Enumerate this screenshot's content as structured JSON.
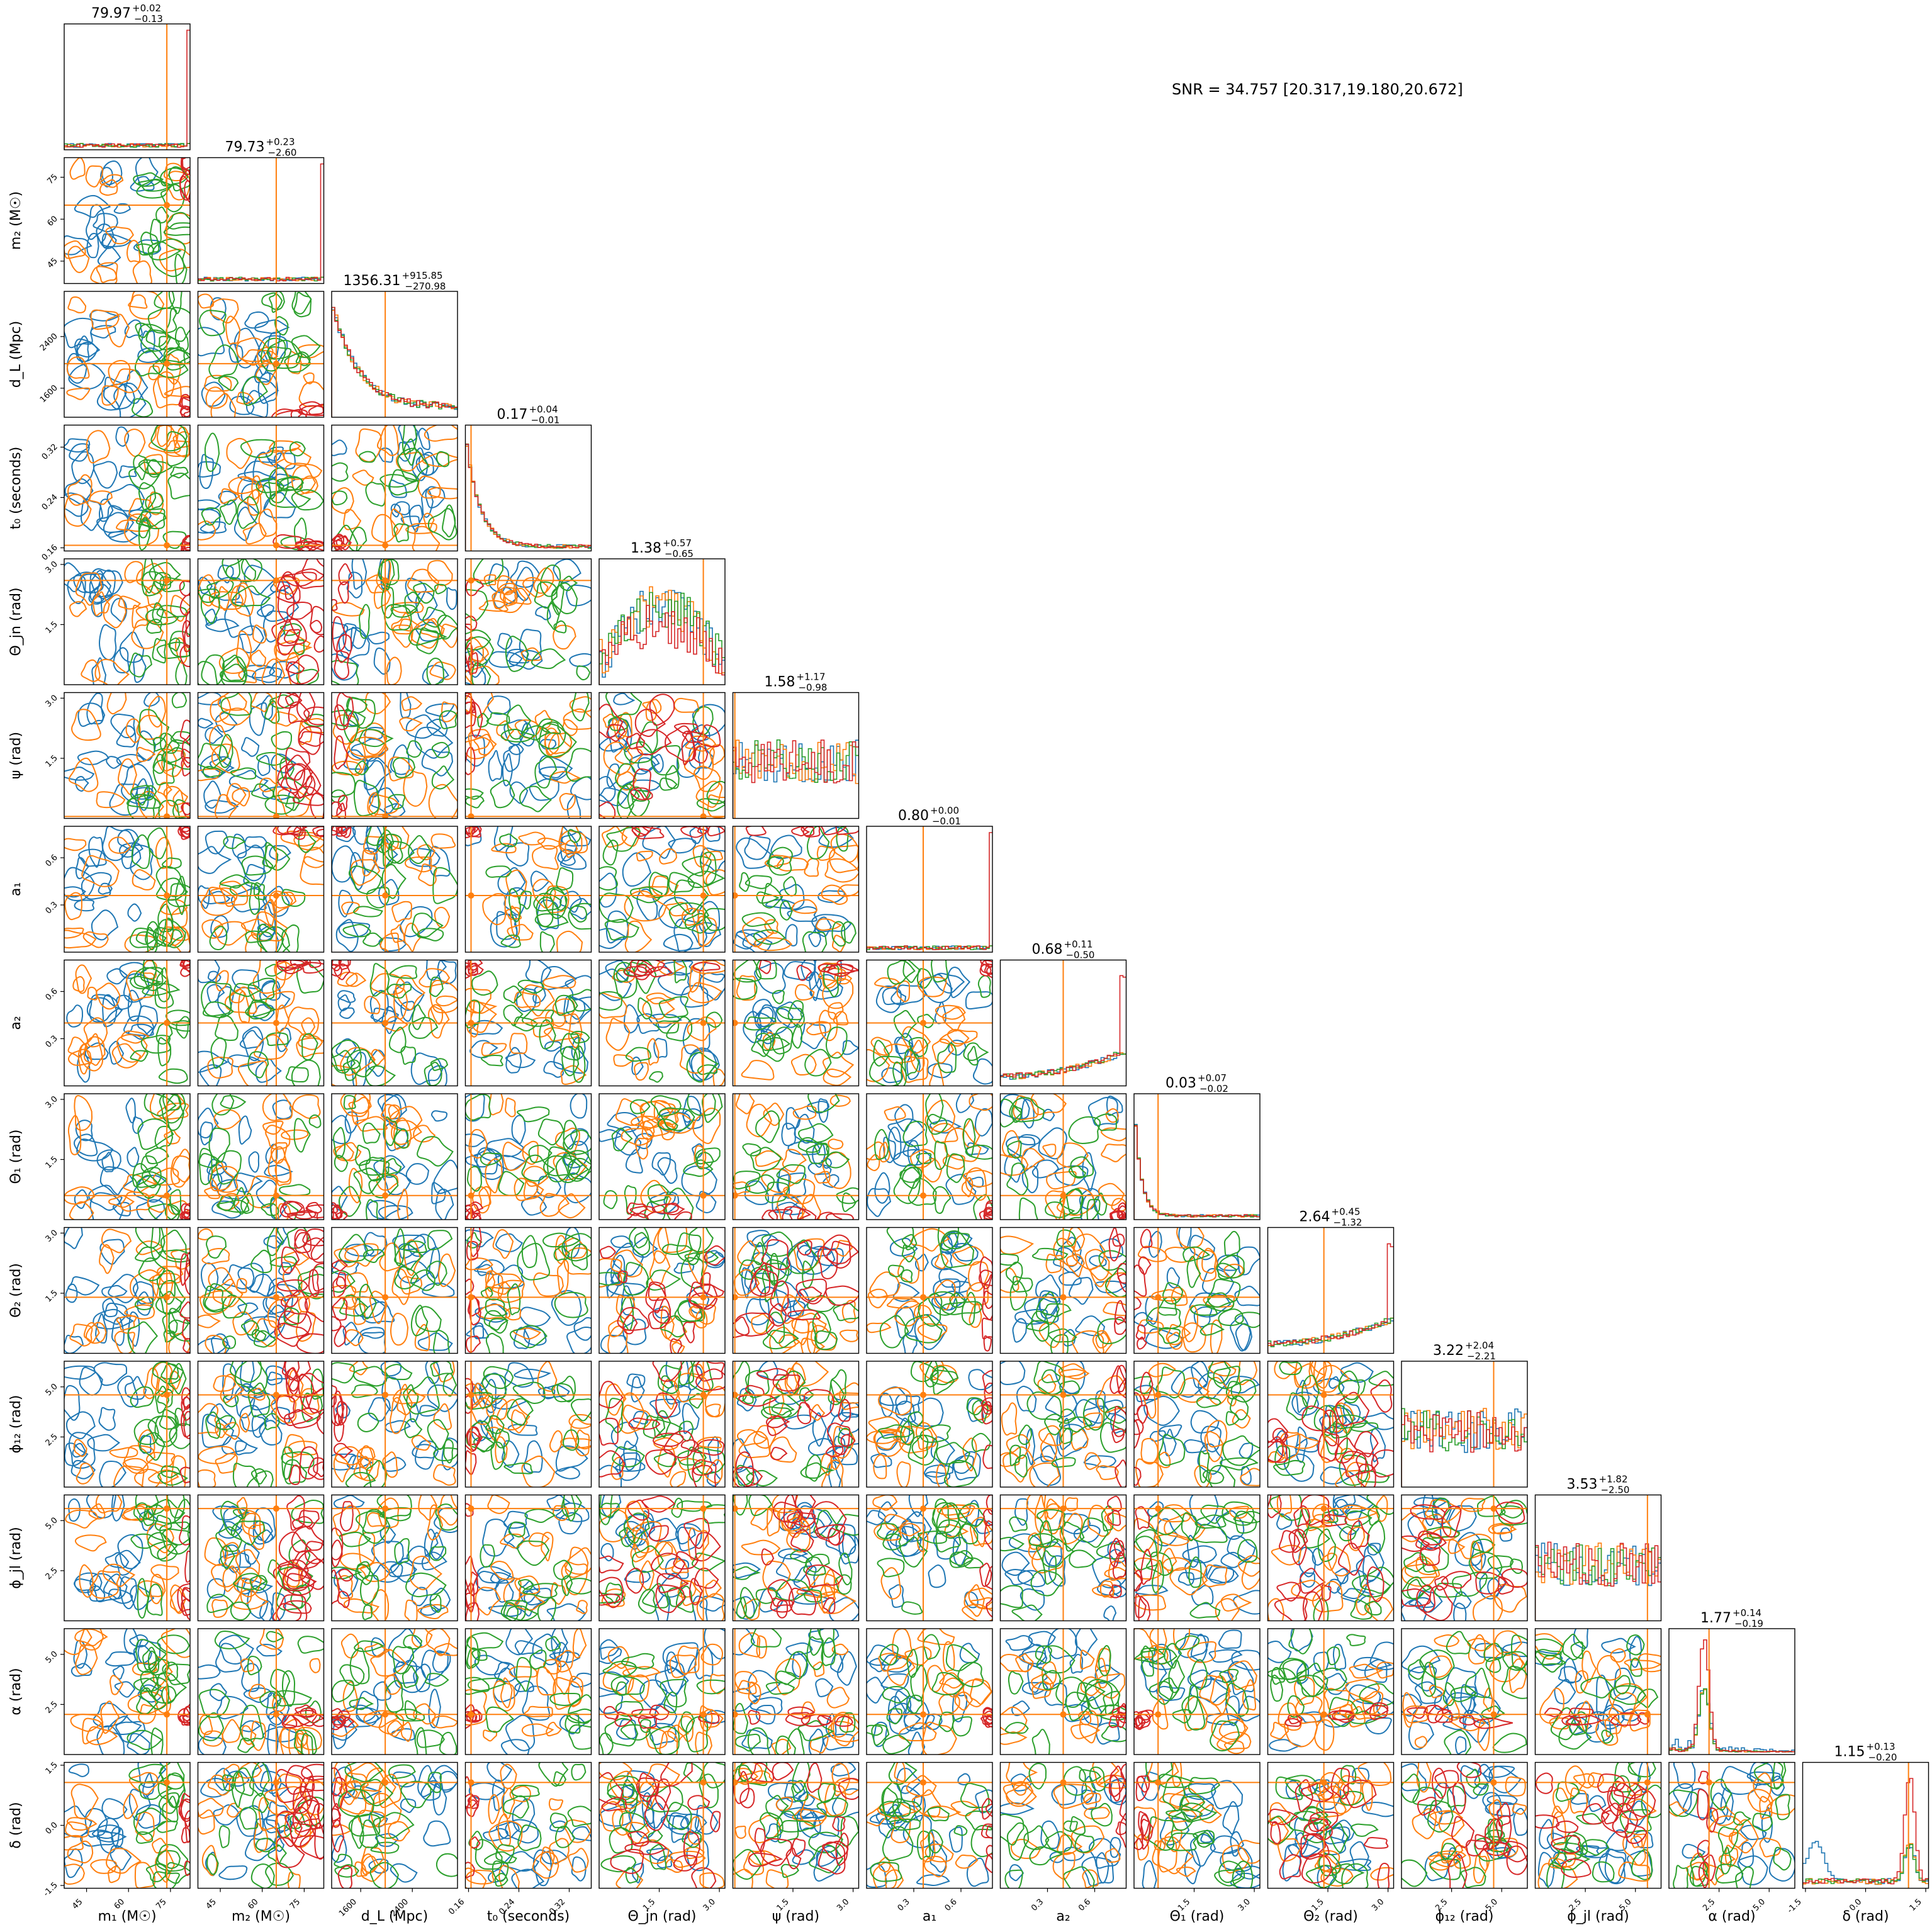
{
  "annotation": {
    "snr_text": "SNR = 34.757 [20.317,19.180,20.672]"
  },
  "chart_data": {
    "type": "corner",
    "title": "",
    "series_colors": [
      "#1f77b4",
      "#ff7f0e",
      "#2ca02c",
      "#d62728"
    ],
    "truth_color": "#ff7f0e",
    "parameters": [
      {
        "id": "m1",
        "label": "m₁ (M☉)",
        "median": "79.97",
        "plus": "+0.02",
        "minus": "−0.13",
        "range": [
          37,
          82
        ],
        "truth": 73.7,
        "ticks": [
          45,
          60,
          75
        ]
      },
      {
        "id": "m2",
        "label": "m₂ (M☉)",
        "median": "79.73",
        "plus": "+0.23",
        "minus": "−2.60",
        "range": [
          37,
          82
        ],
        "truth": 65.0,
        "ticks": [
          45,
          60,
          75
        ]
      },
      {
        "id": "dL",
        "label": "d_L (Mpc)",
        "median": "1356.31",
        "plus": "+915.85",
        "minus": "−270.98",
        "range": [
          1150,
          3100
        ],
        "truth": 1980,
        "ticks": [
          1600,
          2400
        ]
      },
      {
        "id": "t0",
        "label": "t₀ (seconds)",
        "median": "0.17",
        "plus": "+0.04",
        "minus": "−0.01",
        "range": [
          0.155,
          0.355
        ],
        "truth": 0.164,
        "ticks": [
          0.16,
          0.24,
          0.32
        ]
      },
      {
        "id": "theta_jn",
        "label": "Θ_jn (rad)",
        "median": "1.38",
        "plus": "+0.57",
        "minus": "−0.65",
        "range": [
          0,
          3.14
        ],
        "truth": 2.6,
        "ticks": [
          1.5,
          3.0
        ]
      },
      {
        "id": "psi",
        "label": "ψ (rad)",
        "median": "1.58",
        "plus": "+1.17",
        "minus": "−0.98",
        "range": [
          0,
          3.14
        ],
        "truth": 0.05,
        "ticks": [
          1.5,
          3.0
        ]
      },
      {
        "id": "a1",
        "label": "a₁",
        "median": "0.80",
        "plus": "+0.00",
        "minus": "−0.01",
        "range": [
          0,
          0.8
        ],
        "truth": 0.36,
        "ticks": [
          0.3,
          0.6
        ]
      },
      {
        "id": "a2",
        "label": "a₂",
        "median": "0.68",
        "plus": "+0.11",
        "minus": "−0.50",
        "range": [
          0,
          0.8
        ],
        "truth": 0.4,
        "ticks": [
          0.3,
          0.6
        ]
      },
      {
        "id": "theta1",
        "label": "Θ₁ (rad)",
        "median": "0.03",
        "plus": "+0.07",
        "minus": "−0.02",
        "range": [
          0,
          3.14
        ],
        "truth": 0.6,
        "ticks": [
          1.5,
          3.0
        ]
      },
      {
        "id": "theta2",
        "label": "Θ₂ (rad)",
        "median": "2.64",
        "plus": "+0.45",
        "minus": "−1.32",
        "range": [
          0,
          3.14
        ],
        "truth": 1.4,
        "ticks": [
          1.5,
          3.0
        ]
      },
      {
        "id": "phi12",
        "label": "ϕ₁₂ (rad)",
        "median": "3.22",
        "plus": "+2.04",
        "minus": "−2.21",
        "range": [
          0,
          6.28
        ],
        "truth": 4.6,
        "ticks": [
          2.5,
          5.0
        ]
      },
      {
        "id": "phijl",
        "label": "ϕ_jl (rad)",
        "median": "3.53",
        "plus": "+1.82",
        "minus": "−2.50",
        "range": [
          0,
          6.28
        ],
        "truth": 5.6,
        "ticks": [
          2.5,
          5.0
        ]
      },
      {
        "id": "alpha",
        "label": "α (rad)",
        "median": "1.77",
        "plus": "+0.14",
        "minus": "−0.19",
        "range": [
          0,
          6.28
        ],
        "truth": 2.0,
        "ticks": [
          2.5,
          5.0
        ]
      },
      {
        "id": "delta",
        "label": "δ (rad)",
        "median": "1.15",
        "plus": "+0.13",
        "minus": "−0.20",
        "range": [
          -1.57,
          1.57
        ],
        "truth": 1.07,
        "ticks": [
          -1.5,
          0.0,
          1.5
        ]
      }
    ],
    "grid": false,
    "legend": "none"
  }
}
